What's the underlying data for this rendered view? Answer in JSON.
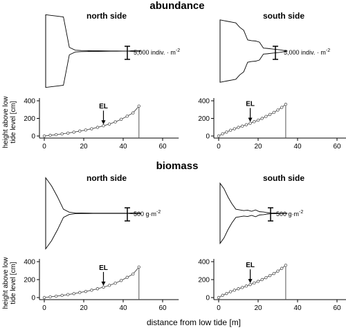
{
  "sections": [
    {
      "title": "abundance",
      "scale_prefix": "5,000 indiv.",
      "scale_unit": "m",
      "scale_exp": "-2",
      "scale_sep": " · "
    },
    {
      "title": "biomass",
      "scale_prefix": "500 g",
      "scale_unit": "m",
      "scale_exp": "-2",
      "scale_sep": "·"
    }
  ],
  "sides": {
    "north": "north side",
    "south": "south side"
  },
  "ylabel_line1": "height above low",
  "ylabel_line2": "tide level [cm]",
  "xlabel": "distance from low tide [m]",
  "el_label": "EL",
  "chart_data": [
    {
      "type": "line",
      "section": "abundance",
      "side": "north side",
      "xlim": [
        0,
        65
      ],
      "ylim": [
        0,
        400
      ],
      "xticks": [
        0,
        20,
        40,
        60
      ],
      "yticks": [
        0,
        200,
        400
      ],
      "x": [
        0,
        3,
        6,
        9,
        12,
        15,
        18,
        21,
        24,
        27,
        30,
        33,
        36,
        39,
        42,
        45,
        48
      ],
      "y": [
        0,
        8,
        15,
        24,
        33,
        44,
        56,
        68,
        82,
        98,
        116,
        136,
        160,
        190,
        225,
        262,
        340
      ],
      "el_x": 30,
      "end_x": 48
    },
    {
      "type": "line",
      "section": "abundance",
      "side": "south side",
      "xlim": [
        0,
        65
      ],
      "ylim": [
        0,
        400
      ],
      "xticks": [
        0,
        20,
        40,
        60
      ],
      "yticks": [
        0,
        200,
        400
      ],
      "x": [
        0,
        2,
        4,
        6,
        8,
        10,
        12,
        14,
        16,
        18,
        20,
        22,
        24,
        26,
        28,
        30,
        32,
        34
      ],
      "y": [
        0,
        25,
        45,
        65,
        82,
        98,
        112,
        128,
        145,
        162,
        180,
        200,
        222,
        245,
        268,
        295,
        325,
        360
      ],
      "el_x": 16,
      "end_x": 34
    },
    {
      "type": "line",
      "section": "biomass",
      "side": "north side",
      "xlim": [
        0,
        65
      ],
      "ylim": [
        0,
        400
      ],
      "xticks": [
        0,
        20,
        40,
        60
      ],
      "yticks": [
        0,
        200,
        400
      ],
      "x": [
        0,
        3,
        6,
        9,
        12,
        15,
        18,
        21,
        24,
        27,
        30,
        33,
        36,
        39,
        42,
        45,
        48
      ],
      "y": [
        0,
        8,
        15,
        24,
        33,
        44,
        56,
        68,
        82,
        98,
        116,
        136,
        160,
        190,
        225,
        262,
        340
      ],
      "el_x": 30,
      "end_x": 48
    },
    {
      "type": "line",
      "section": "biomass",
      "side": "south side",
      "xlim": [
        0,
        65
      ],
      "ylim": [
        0,
        400
      ],
      "xticks": [
        0,
        20,
        40,
        60
      ],
      "yticks": [
        0,
        200,
        400
      ],
      "x": [
        0,
        2,
        4,
        6,
        8,
        10,
        12,
        14,
        16,
        18,
        20,
        22,
        24,
        26,
        28,
        30,
        32,
        34
      ],
      "y": [
        0,
        25,
        45,
        65,
        82,
        98,
        112,
        128,
        145,
        162,
        180,
        200,
        222,
        245,
        268,
        295,
        325,
        360
      ],
      "el_x": 16,
      "end_x": 34
    }
  ],
  "kite_data": [
    {
      "section": "abundance",
      "side": "north side",
      "x": [
        0,
        3,
        6,
        9,
        12,
        15,
        18,
        21,
        24,
        27,
        30,
        33,
        36,
        39,
        42,
        45,
        48
      ],
      "half_width": [
        24500,
        24000,
        23500,
        23000,
        2500,
        600,
        400,
        300,
        250,
        200,
        150,
        100,
        100,
        50,
        50,
        400,
        300
      ]
    },
    {
      "section": "abundance",
      "side": "south side",
      "x": [
        0,
        2,
        4,
        6,
        8,
        10,
        12,
        14,
        16,
        18,
        20,
        22,
        24,
        26,
        28,
        30,
        32,
        34
      ],
      "half_width": [
        21000,
        20500,
        20000,
        19500,
        19000,
        16000,
        14000,
        7500,
        7000,
        6800,
        6000,
        2000,
        1800,
        1500,
        1200,
        900,
        500,
        100
      ]
    },
    {
      "section": "biomass",
      "side": "north side",
      "x": [
        0,
        3,
        6,
        9,
        12,
        15,
        18,
        21,
        24,
        27,
        30,
        33,
        36,
        39,
        42,
        45,
        48
      ],
      "half_width": [
        2600,
        2000,
        1200,
        300,
        80,
        30,
        20,
        15,
        10,
        10,
        10,
        10,
        10,
        10,
        10,
        40,
        30
      ]
    },
    {
      "section": "biomass",
      "side": "south side",
      "x": [
        0,
        2,
        4,
        6,
        8,
        10,
        12,
        14,
        16,
        18,
        20,
        22,
        24,
        26,
        28,
        30,
        32,
        34
      ],
      "half_width": [
        2200,
        1800,
        1200,
        700,
        300,
        250,
        200,
        230,
        150,
        250,
        120,
        100,
        50,
        30,
        20,
        10,
        10,
        10
      ]
    }
  ]
}
